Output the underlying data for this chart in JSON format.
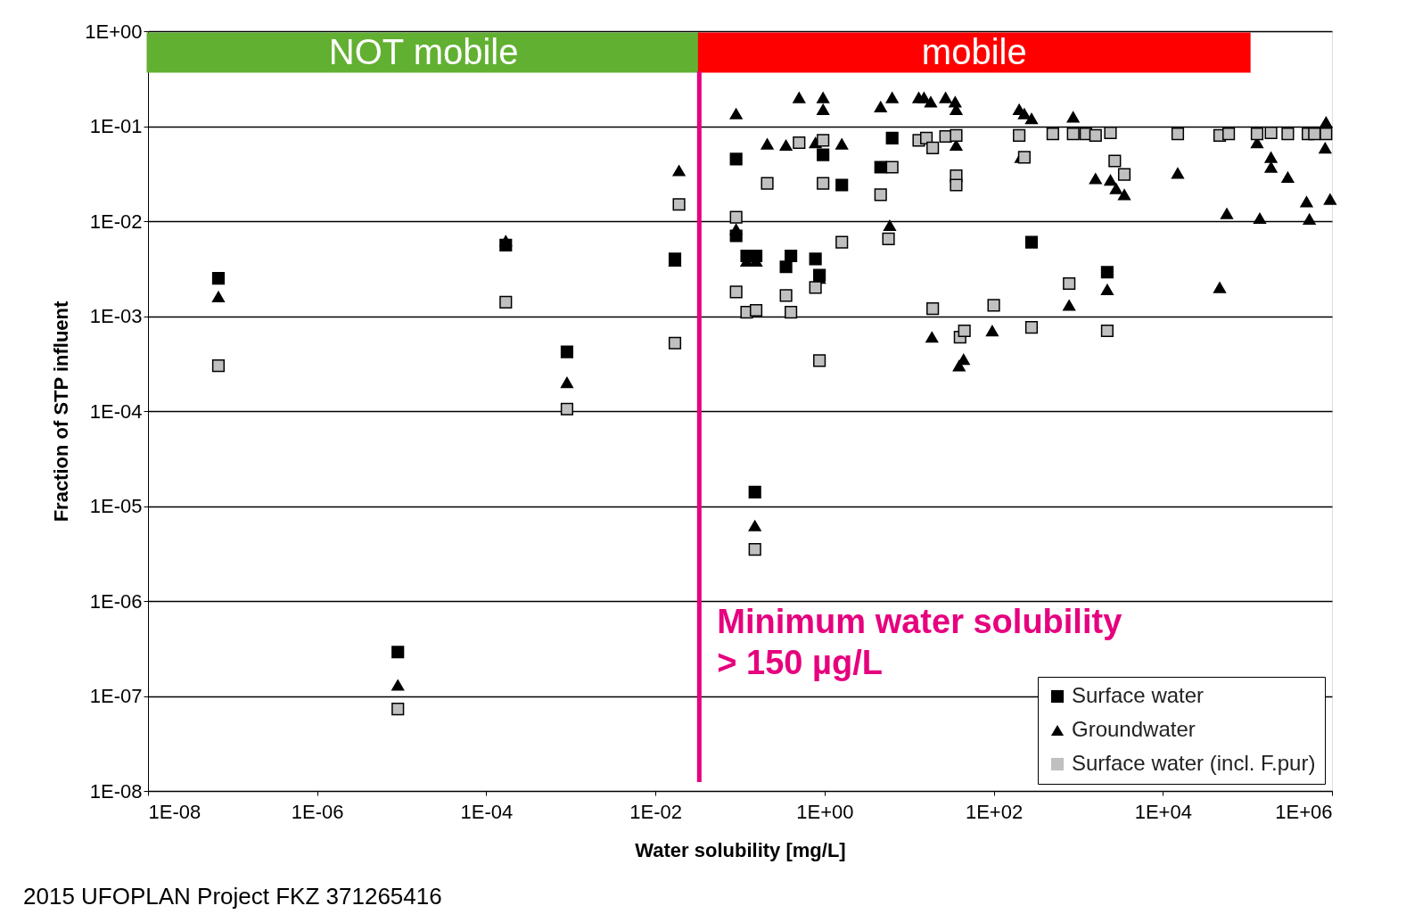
{
  "chart_data": {
    "type": "scatter",
    "xlabel": "Water solubility [mg/L]",
    "ylabel": "Fraction of STP influent",
    "log": "xy",
    "grid": "y",
    "legend": "bottom right",
    "xlim": [
      1e-08,
      1000000.0
    ],
    "ylim": [
      1e-08,
      1
    ],
    "xticks": [
      {
        "value": 1e-08,
        "label": "1E-08"
      },
      {
        "value": 1e-06,
        "label": "1E-06"
      },
      {
        "value": 0.0001,
        "label": "1E-04"
      },
      {
        "value": 0.01,
        "label": "1E-02"
      },
      {
        "value": 1,
        "label": "1E+00"
      },
      {
        "value": 100.0,
        "label": "1E+02"
      },
      {
        "value": 10000.0,
        "label": "1E+04"
      },
      {
        "value": 1000000.0,
        "label": "1E+06"
      }
    ],
    "yticks": [
      {
        "value": 1,
        "label": "1E+00"
      },
      {
        "value": 0.1,
        "label": "1E-01"
      },
      {
        "value": 0.01,
        "label": "1E-02"
      },
      {
        "value": 0.001,
        "label": "1E-03"
      },
      {
        "value": 0.0001,
        "label": "1E-04"
      },
      {
        "value": 1e-05,
        "label": "1E-05"
      },
      {
        "value": 1e-06,
        "label": "1E-06"
      },
      {
        "value": 1e-07,
        "label": "1E-07"
      },
      {
        "value": 1e-08,
        "label": "1E-08"
      }
    ],
    "series": [
      {
        "name": "Surface water",
        "color": "#000000",
        "marker": "square",
        "x": [
          6.8e-08,
          9e-06,
          0.00017,
          0.0009,
          0.017,
          0.09,
          0.09,
          0.12,
          0.155,
          0.15,
          0.35,
          0.4,
          0.78,
          0.87,
          0.96,
          1.6,
          4.6,
          6.3,
          280,
          2200
        ],
        "values": [
          0.0025,
          2.9e-07,
          0.0056,
          0.00042,
          0.004,
          0.045,
          0.007,
          0.0043,
          0.0043,
          1.4e-05,
          0.0033,
          0.0043,
          0.004,
          0.0027,
          0.05,
          0.024,
          0.037,
          0.075,
          0.006,
          0.0029
        ]
      },
      {
        "name": "Groundwater",
        "color": "#000000",
        "marker": "triangle",
        "x": [
          6.8e-08,
          9e-06,
          0.00017,
          0.0009,
          0.017,
          0.019,
          0.09,
          0.09,
          0.12,
          0.155,
          0.15,
          0.21,
          0.35,
          0.5,
          0.78,
          0.96,
          0.96,
          0.87,
          1.6,
          4.6,
          6.3,
          5.9,
          13,
          15,
          18,
          27,
          35,
          36,
          36,
          18.6,
          39,
          44,
          96,
          200,
          230,
          280,
          210,
          870,
          780,
          1600,
          2400,
          2800,
          3500,
          2200,
          15000,
          47000,
          57000,
          140000,
          130000,
          190000,
          190000,
          300000,
          500000,
          540000,
          850000,
          830000,
          950000
        ],
        "values": [
          0.0016,
          1.3e-07,
          0.0062,
          0.0002,
          0.0038,
          0.034,
          0.135,
          0.0082,
          0.0038,
          0.0038,
          6.2e-06,
          0.065,
          0.063,
          0.2,
          0.067,
          0.2,
          0.15,
          0.0025,
          0.065,
          0.16,
          0.2,
          0.009,
          0.2,
          0.2,
          0.18,
          0.2,
          0.18,
          0.15,
          0.063,
          0.0006,
          0.0003,
          0.00035,
          0.0007,
          0.15,
          0.135,
          0.12,
          0.047,
          0.125,
          0.0013,
          0.028,
          0.027,
          0.022,
          0.019,
          0.0019,
          0.032,
          0.002,
          0.012,
          0.0107,
          0.067,
          0.047,
          0.037,
          0.029,
          0.016,
          0.0105,
          0.11,
          0.059,
          0.017
        ]
      },
      {
        "name": "Surface water (incl. F.pur)",
        "color": "#c0c0c0",
        "marker": "square",
        "x": [
          6.8e-08,
          9e-06,
          0.00017,
          0.0009,
          0.017,
          0.019,
          0.09,
          0.09,
          0.12,
          0.155,
          0.15,
          0.21,
          0.35,
          0.4,
          0.5,
          0.78,
          0.87,
          0.96,
          0.96,
          1.6,
          4.6,
          6.3,
          5.7,
          13,
          16,
          19,
          27,
          36,
          36,
          36,
          19,
          40,
          45,
          100,
          200,
          230,
          280,
          500,
          780,
          870,
          1230,
          1600,
          2400,
          2700,
          3500,
          2200,
          15000,
          47000,
          60000,
          130000,
          190000,
          300000,
          520000,
          620000,
          850000
        ],
        "values": [
          0.0003,
          7.3e-08,
          0.0014,
          0.000105,
          0.00052,
          0.015,
          0.011,
          0.0018,
          0.0011,
          0.00115,
          3.5e-06,
          0.025,
          0.00165,
          0.0011,
          0.067,
          0.002,
          0.00034,
          0.071,
          0.025,
          0.006,
          0.019,
          0.037,
          0.0065,
          0.071,
          0.075,
          0.059,
          0.078,
          0.08,
          0.03,
          0.024,
          0.0012,
          0.0006,
          0.0007,
          0.0013,
          0.08,
          0.047,
          0.00076,
          0.083,
          0.0022,
          0.083,
          0.083,
          0.08,
          0.085,
          0.043,
          0.031,
          0.0007,
          0.083,
          0.08,
          0.083,
          0.083,
          0.085,
          0.083,
          0.083,
          0.083,
          0.083
        ]
      }
    ],
    "bands": [
      {
        "axis": "x",
        "from": 1e-08,
        "to": 0.033,
        "label": "NOT mobile",
        "color": "#62b032"
      },
      {
        "axis": "x",
        "from": 0.033,
        "to": 105000.0,
        "label": "mobile",
        "color": "#ff0000"
      }
    ],
    "ref_lines": [
      {
        "axis": "x",
        "value": 0.033,
        "label": "Minimum water solubility\n> 150 µg/L",
        "color": "#e6007e"
      }
    ],
    "annotations": [
      "2015 UFOPLAN Project FKZ 371265416"
    ]
  }
}
